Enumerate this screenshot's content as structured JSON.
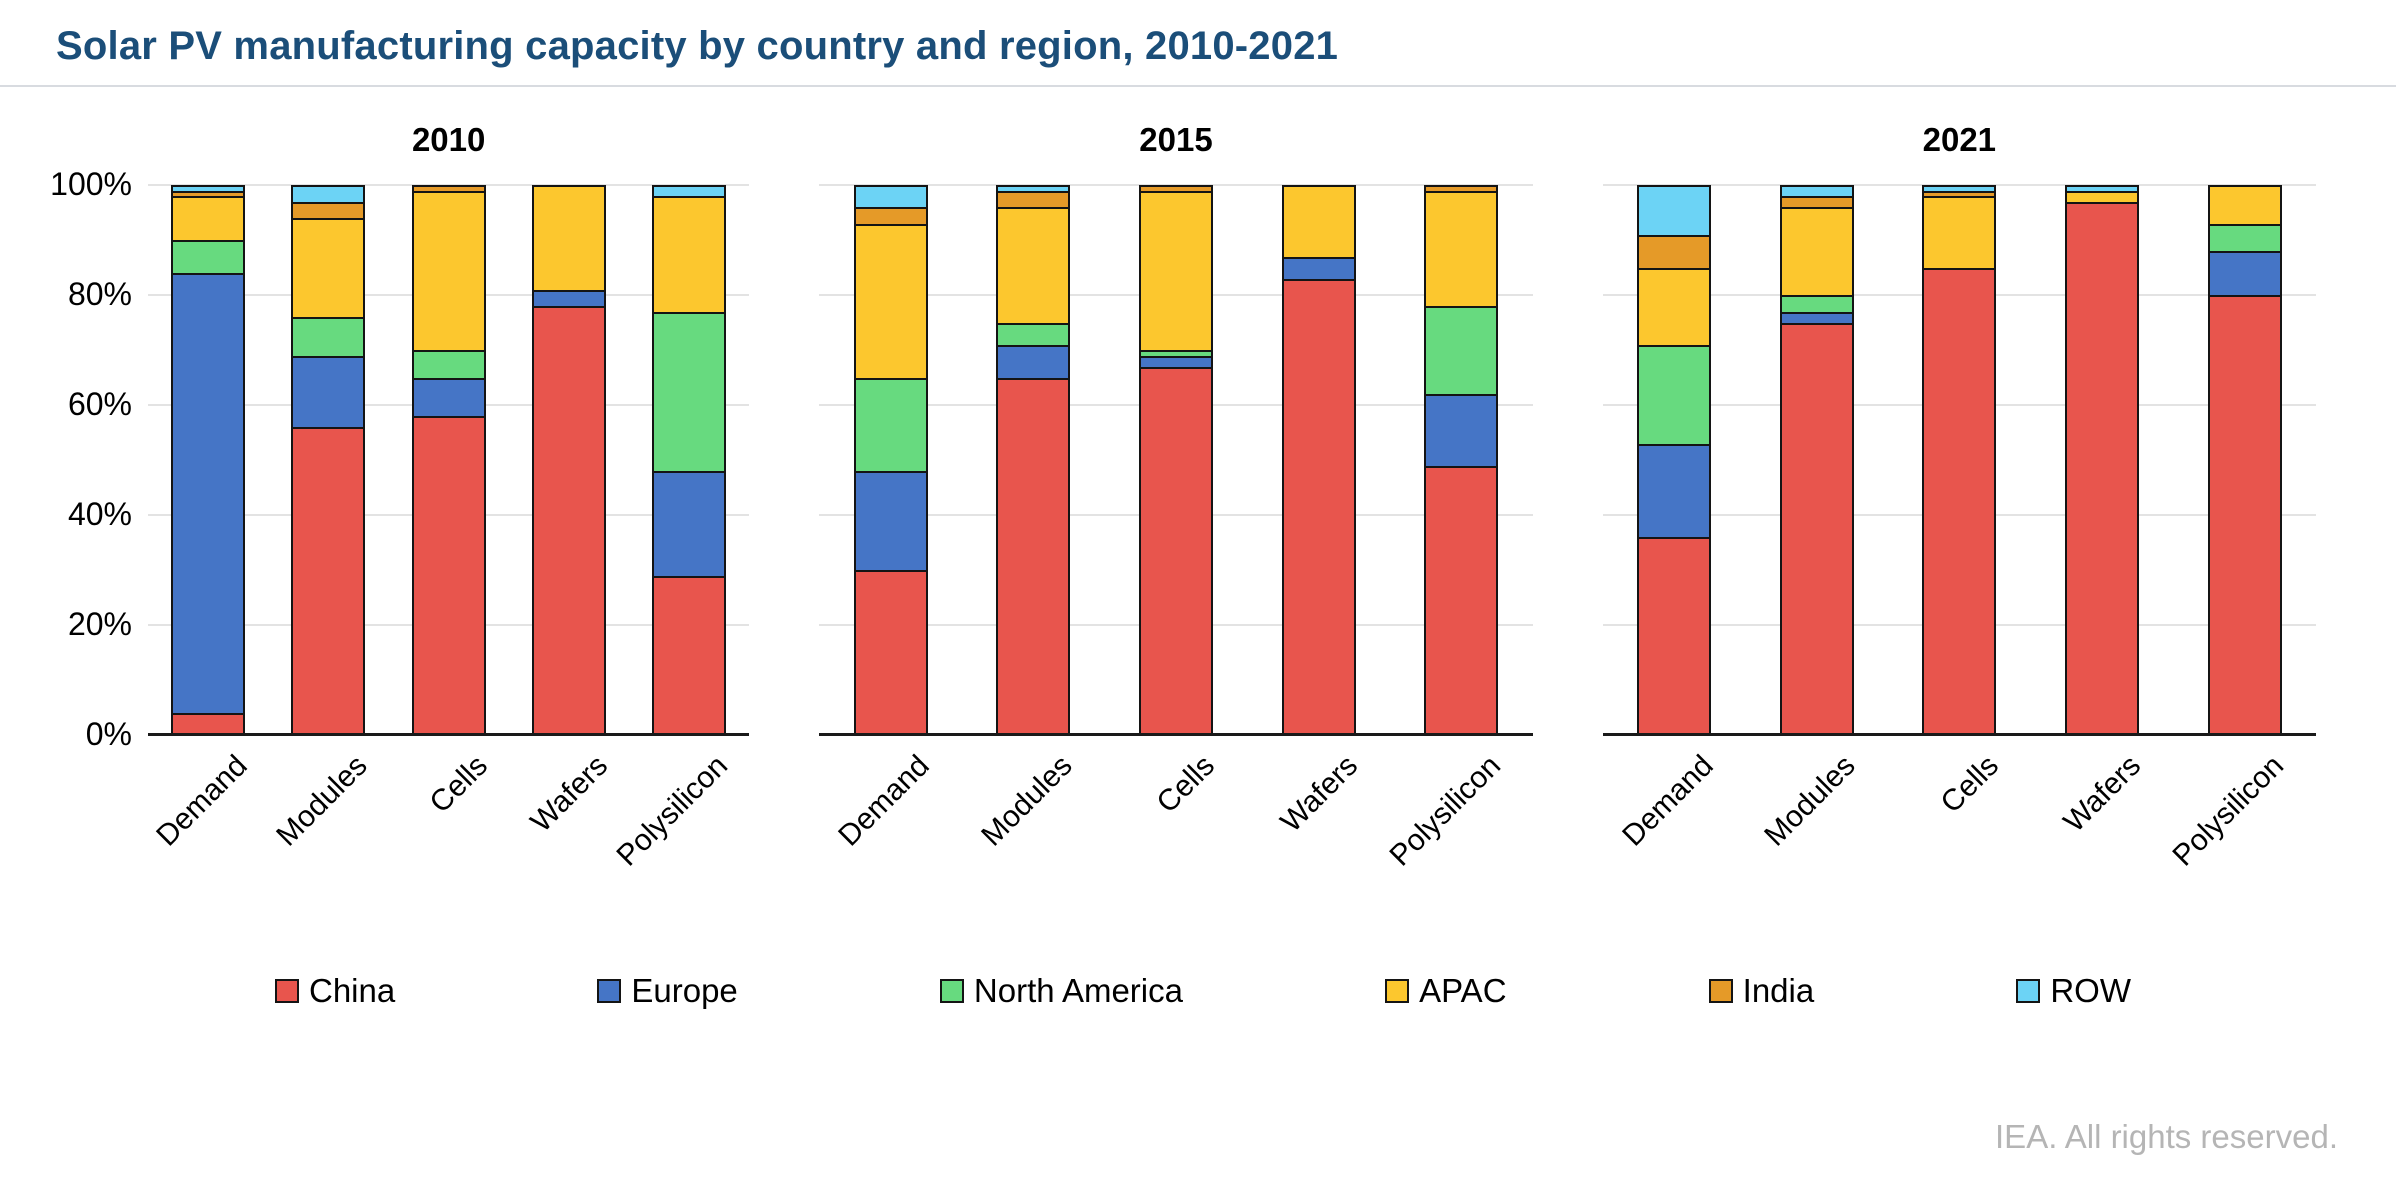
{
  "title": "Solar PV manufacturing capacity by country and region, 2010-2021",
  "footer": "IEA. All rights reserved.",
  "colors": {
    "China": "#e8554d",
    "Europe": "#4575c6",
    "North America": "#67da7f",
    "APAC": "#fcc72e",
    "India": "#e59a28",
    "ROW": "#6cd3f5"
  },
  "legend": [
    "China",
    "Europe",
    "North America",
    "APAC",
    "India",
    "ROW"
  ],
  "chart_data": [
    {
      "type": "bar",
      "stacked": true,
      "percent": true,
      "title": "2010",
      "categories": [
        "Demand",
        "Modules",
        "Cells",
        "Wafers",
        "Polysilicon"
      ],
      "series": [
        {
          "name": "China",
          "values": [
            4,
            56,
            58,
            78,
            29
          ]
        },
        {
          "name": "Europe",
          "values": [
            80,
            13,
            7,
            3,
            19
          ]
        },
        {
          "name": "North America",
          "values": [
            6,
            7,
            5,
            0,
            29
          ]
        },
        {
          "name": "APAC",
          "values": [
            8,
            18,
            29,
            19,
            21
          ]
        },
        {
          "name": "India",
          "values": [
            1,
            3,
            1,
            0,
            0
          ]
        },
        {
          "name": "ROW",
          "values": [
            1,
            3,
            0,
            0,
            2
          ]
        }
      ],
      "xlabel": "",
      "ylabel": "",
      "ylim": [
        0,
        100
      ],
      "yticks": [
        "0%",
        "20%",
        "40%",
        "60%",
        "80%",
        "100%"
      ],
      "grid": true
    },
    {
      "type": "bar",
      "stacked": true,
      "percent": true,
      "title": "2015",
      "categories": [
        "Demand",
        "Modules",
        "Cells",
        "Wafers",
        "Polysilicon"
      ],
      "series": [
        {
          "name": "China",
          "values": [
            30,
            65,
            67,
            83,
            49
          ]
        },
        {
          "name": "Europe",
          "values": [
            18,
            6,
            2,
            4,
            13
          ]
        },
        {
          "name": "North America",
          "values": [
            17,
            4,
            1,
            0,
            16
          ]
        },
        {
          "name": "APAC",
          "values": [
            28,
            21,
            29,
            13,
            21
          ]
        },
        {
          "name": "India",
          "values": [
            3,
            3,
            1,
            0,
            1
          ]
        },
        {
          "name": "ROW",
          "values": [
            4,
            1,
            0,
            0,
            0
          ]
        }
      ],
      "xlabel": "",
      "ylabel": "",
      "ylim": [
        0,
        100
      ],
      "yticks": [
        "0%",
        "20%",
        "40%",
        "60%",
        "80%",
        "100%"
      ],
      "grid": true
    },
    {
      "type": "bar",
      "stacked": true,
      "percent": true,
      "title": "2021",
      "categories": [
        "Demand",
        "Modules",
        "Cells",
        "Wafers",
        "Polysilicon"
      ],
      "series": [
        {
          "name": "China",
          "values": [
            36,
            75,
            85,
            97,
            80
          ]
        },
        {
          "name": "Europe",
          "values": [
            17,
            2,
            0,
            0,
            8
          ]
        },
        {
          "name": "North America",
          "values": [
            18,
            3,
            0,
            0,
            5
          ]
        },
        {
          "name": "APAC",
          "values": [
            14,
            16,
            13,
            2,
            7
          ]
        },
        {
          "name": "India",
          "values": [
            6,
            2,
            1,
            0,
            0
          ]
        },
        {
          "name": "ROW",
          "values": [
            9,
            2,
            1,
            1,
            0
          ]
        }
      ],
      "xlabel": "",
      "ylabel": "",
      "ylim": [
        0,
        100
      ],
      "yticks": [
        "0%",
        "20%",
        "40%",
        "60%",
        "80%",
        "100%"
      ],
      "grid": true
    }
  ]
}
